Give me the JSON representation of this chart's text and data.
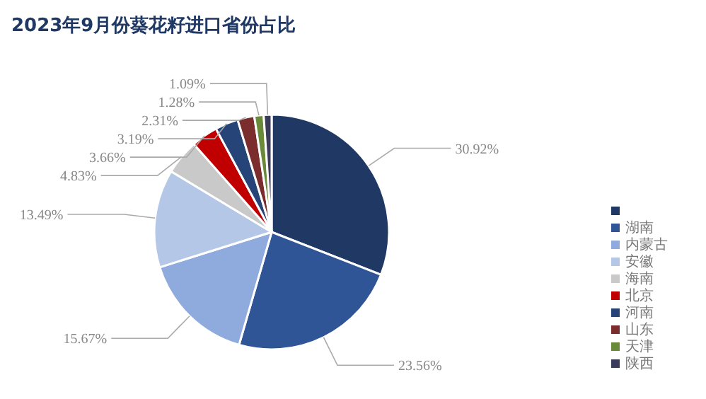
{
  "chart_data": {
    "type": "pie",
    "title": "2023年9月份葵花籽进口省份占比",
    "categories": [
      null,
      "湖南",
      "内蒙古",
      "安徽",
      "海南",
      "北京",
      "河南",
      "山东",
      "天津",
      "陕西"
    ],
    "values": [
      30.92,
      23.56,
      15.67,
      13.49,
      4.83,
      3.66,
      3.19,
      2.31,
      1.28,
      1.09
    ],
    "value_labels": [
      "30.92%",
      "23.56%",
      "15.67%",
      "13.49%",
      "4.83%",
      "3.66%",
      "3.19%",
      "2.31%",
      "1.28%",
      "1.09%"
    ],
    "colors": [
      "#1f3864",
      "#2f5597",
      "#8faadc",
      "#b4c7e7",
      "#c9c9c9",
      "#c00000",
      "#264478",
      "#7b2c2c",
      "#6a8a3a",
      "#3a3a5a"
    ],
    "legend": "right"
  }
}
